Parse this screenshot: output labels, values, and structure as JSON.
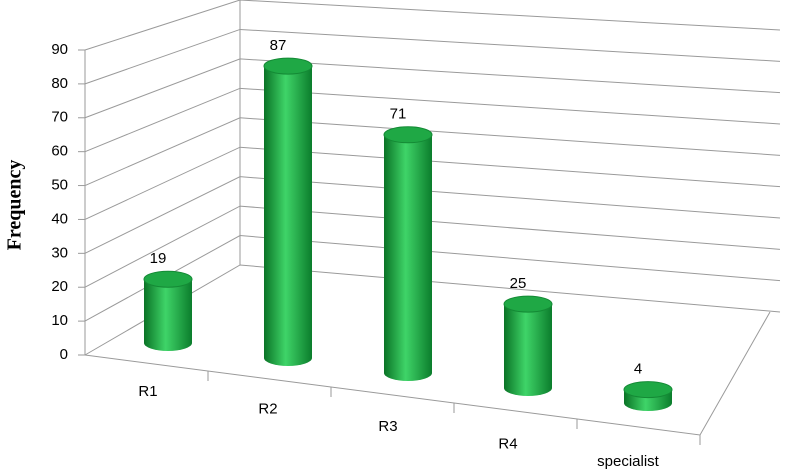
{
  "chart_data": {
    "type": "bar",
    "y_label": "Frequency",
    "categories": [
      "R1",
      "R2",
      "R3",
      "R4",
      "specialist"
    ],
    "values": [
      19,
      87,
      71,
      25,
      4
    ],
    "color": "#1fa845",
    "ylim": [
      0,
      90
    ],
    "yticks": [
      0,
      10,
      20,
      30,
      40,
      50,
      60,
      70,
      80,
      90
    ],
    "grid": true
  }
}
